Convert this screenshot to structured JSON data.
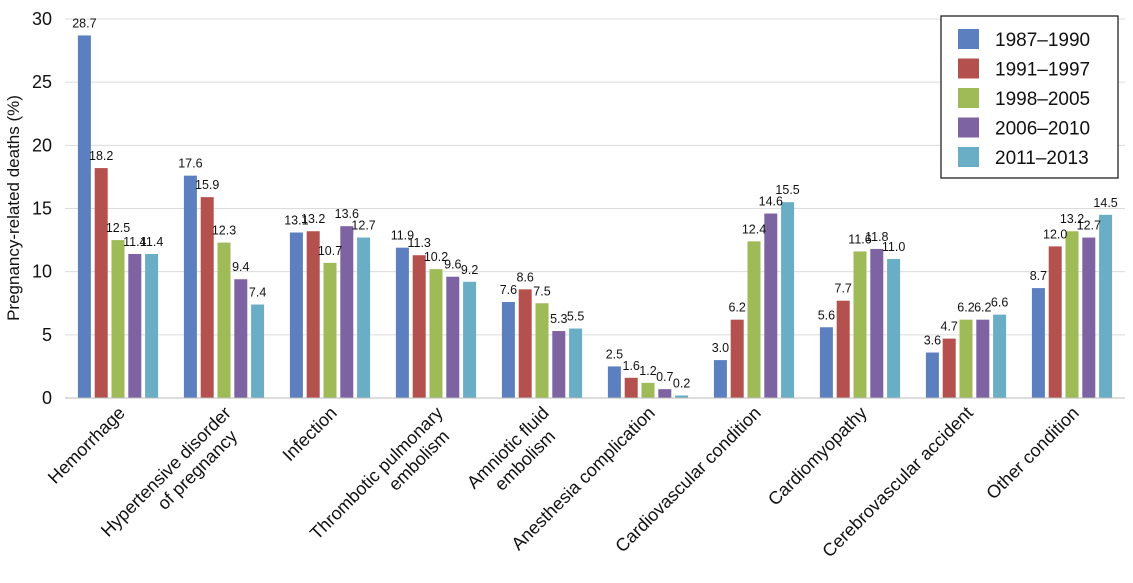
{
  "chart_data": {
    "type": "bar",
    "title": "",
    "xlabel": "",
    "ylabel": "Pregnancy-related deaths (%)",
    "ylim": [
      0,
      30
    ],
    "yticks": [
      0,
      5,
      10,
      15,
      20,
      25,
      30
    ],
    "grid": true,
    "legend_position": "top-right",
    "categories": [
      [
        "Hemorrhage"
      ],
      [
        "Hypertensive disorder",
        "of pregnancy"
      ],
      [
        "Infection"
      ],
      [
        "Thrombotic pulmonary",
        "embolism"
      ],
      [
        "Amniotic fluid",
        "embolism"
      ],
      [
        "Anesthesia complication"
      ],
      [
        "Cardiovascular condition"
      ],
      [
        "Cardiomyopathy"
      ],
      [
        "Cerebrovascular accident"
      ],
      [
        "Other condition"
      ]
    ],
    "series": [
      {
        "name": "1987–1990",
        "color": "#5b7fbf",
        "values": [
          28.7,
          17.6,
          13.1,
          11.9,
          7.6,
          2.5,
          3.0,
          5.6,
          3.6,
          8.7
        ]
      },
      {
        "name": "1991–1997",
        "color": "#b4504d",
        "values": [
          18.2,
          15.9,
          13.2,
          11.3,
          8.6,
          1.6,
          6.2,
          7.7,
          4.7,
          12.0
        ]
      },
      {
        "name": "1998–2005",
        "color": "#9fbb58",
        "values": [
          12.5,
          12.3,
          10.7,
          10.2,
          7.5,
          1.2,
          12.4,
          11.6,
          6.2,
          13.2
        ]
      },
      {
        "name": "2006–2010",
        "color": "#7e63a2",
        "values": [
          11.4,
          9.4,
          13.6,
          9.6,
          5.3,
          0.7,
          14.6,
          11.8,
          6.2,
          12.7
        ]
      },
      {
        "name": "2011–2013",
        "color": "#6aaec6",
        "values": [
          11.4,
          7.4,
          12.7,
          9.2,
          5.5,
          0.2,
          15.5,
          11.0,
          6.6,
          14.5
        ]
      }
    ]
  }
}
